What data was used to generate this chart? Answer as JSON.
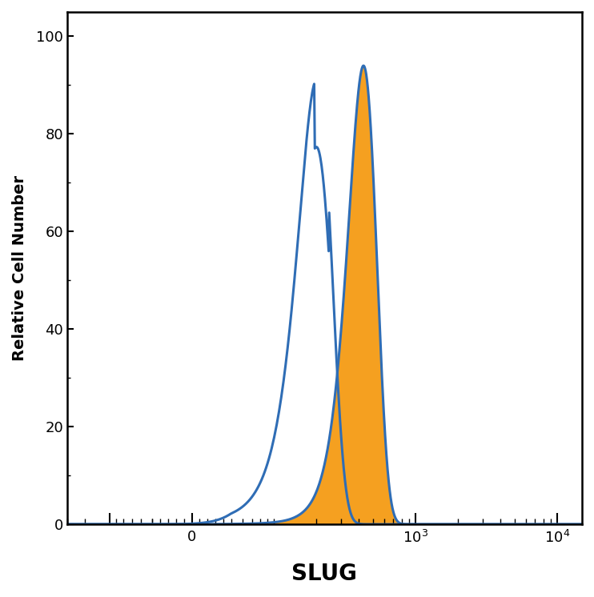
{
  "ylabel": "Relative Cell Number",
  "xlabel": "SLUG",
  "ylim": [
    0,
    105
  ],
  "yticks": [
    0,
    20,
    40,
    60,
    80,
    100
  ],
  "background_color": "#ffffff",
  "isotype_color": "#2f6db5",
  "filled_color": "#f5a020",
  "isotype_peak": 200,
  "isotype_peak_val": 91,
  "isotype_sigma": 55,
  "filled_peak": 430,
  "filled_peak_val": 94,
  "filled_sigma": 100,
  "line_width": 2.2,
  "xlabel_fontsize": 20,
  "ylabel_fontsize": 14,
  "tick_fontsize": 13,
  "linthresh": 50,
  "linscale": 0.25
}
